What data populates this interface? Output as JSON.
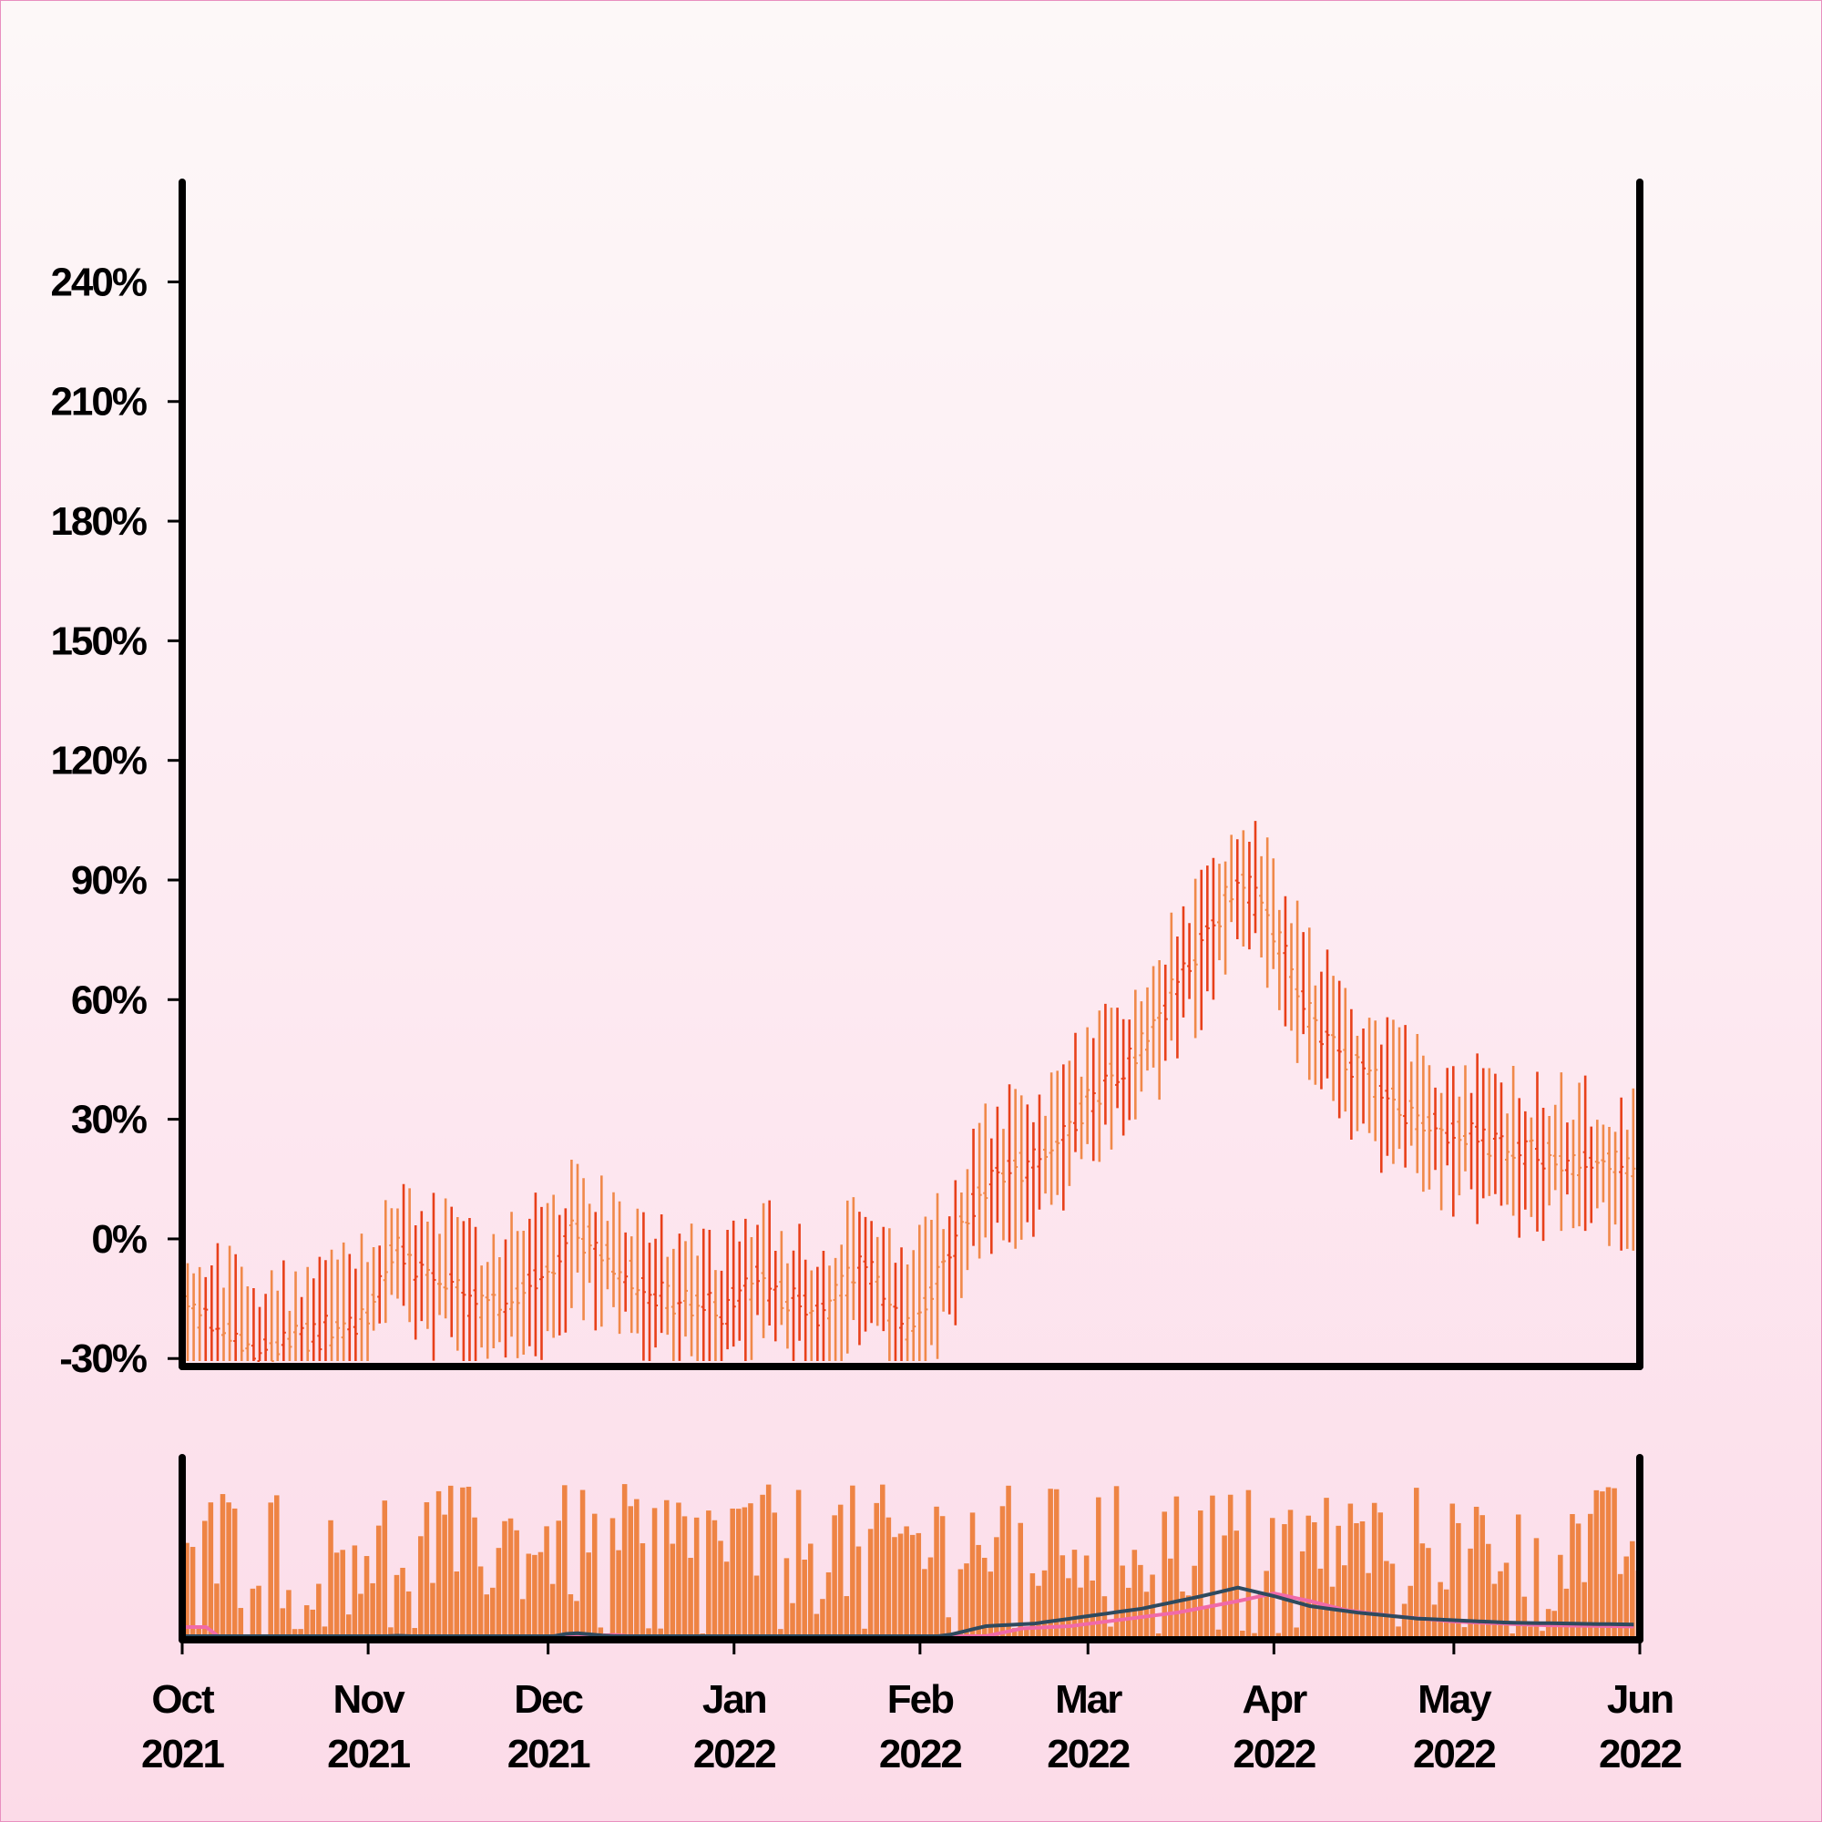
{
  "chart_data": [
    {
      "type": "ohlc",
      "title": "",
      "xlabel": "",
      "ylabel": "",
      "ylim": [
        -32,
        265
      ],
      "y_tick_values": [
        -30,
        0,
        30,
        60,
        90,
        120,
        150,
        180,
        210,
        240
      ],
      "y_tick_labels": [
        "-30%",
        "0%",
        "30%",
        "60%",
        "90%",
        "120%",
        "150%",
        "180%",
        "210%",
        "240%"
      ],
      "x_range": [
        "2021-10-01",
        "2022-06-01"
      ],
      "x_ticks": [
        {
          "date": "2021-10-01",
          "month": "Oct",
          "year": "2021"
        },
        {
          "date": "2021-11-01",
          "month": "Nov",
          "year": "2021"
        },
        {
          "date": "2021-12-01",
          "month": "Dec",
          "year": "2021"
        },
        {
          "date": "2022-01-01",
          "month": "Jan",
          "year": "2022"
        },
        {
          "date": "2022-02-01",
          "month": "Feb",
          "year": "2022"
        },
        {
          "date": "2022-03-01",
          "month": "Mar",
          "year": "2022"
        },
        {
          "date": "2022-04-01",
          "month": "Apr",
          "year": "2022"
        },
        {
          "date": "2022-05-01",
          "month": "May",
          "year": "2022"
        },
        {
          "date": "2022-06-01",
          "month": "Jun",
          "year": "2022"
        }
      ],
      "trend_points": [
        [
          "2021-10-01",
          -18
        ],
        [
          "2021-10-15",
          -28
        ],
        [
          "2021-10-31",
          -20
        ],
        [
          "2021-11-05",
          -3
        ],
        [
          "2021-11-20",
          -18
        ],
        [
          "2021-12-01",
          -8
        ],
        [
          "2021-12-05",
          2
        ],
        [
          "2021-12-12",
          -6
        ],
        [
          "2021-12-20",
          -15
        ],
        [
          "2021-12-30",
          -18
        ],
        [
          "2022-01-05",
          -10
        ],
        [
          "2022-01-15",
          -20
        ],
        [
          "2022-01-22",
          -5
        ],
        [
          "2022-01-29",
          -25
        ],
        [
          "2022-02-05",
          -5
        ],
        [
          "2022-02-12",
          15
        ],
        [
          "2022-02-20",
          20
        ],
        [
          "2022-03-01",
          35
        ],
        [
          "2022-03-10",
          50
        ],
        [
          "2022-03-20",
          75
        ],
        [
          "2022-03-26",
          92
        ],
        [
          "2022-04-01",
          75
        ],
        [
          "2022-04-07",
          55
        ],
        [
          "2022-04-15",
          42
        ],
        [
          "2022-04-25",
          30
        ],
        [
          "2022-05-10",
          22
        ],
        [
          "2022-06-01",
          18
        ]
      ],
      "up_color": "#f0894a",
      "down_color": "#e8401a",
      "grid": false
    },
    {
      "type": "bar+line",
      "series": [
        {
          "kind": "bar",
          "color": "#ee8444"
        },
        {
          "kind": "line",
          "color": "#2e4a5e"
        },
        {
          "kind": "line",
          "color": "#f06aa8"
        }
      ],
      "x_range": [
        "2021-10-01",
        "2022-06-01"
      ],
      "grid": false
    }
  ]
}
